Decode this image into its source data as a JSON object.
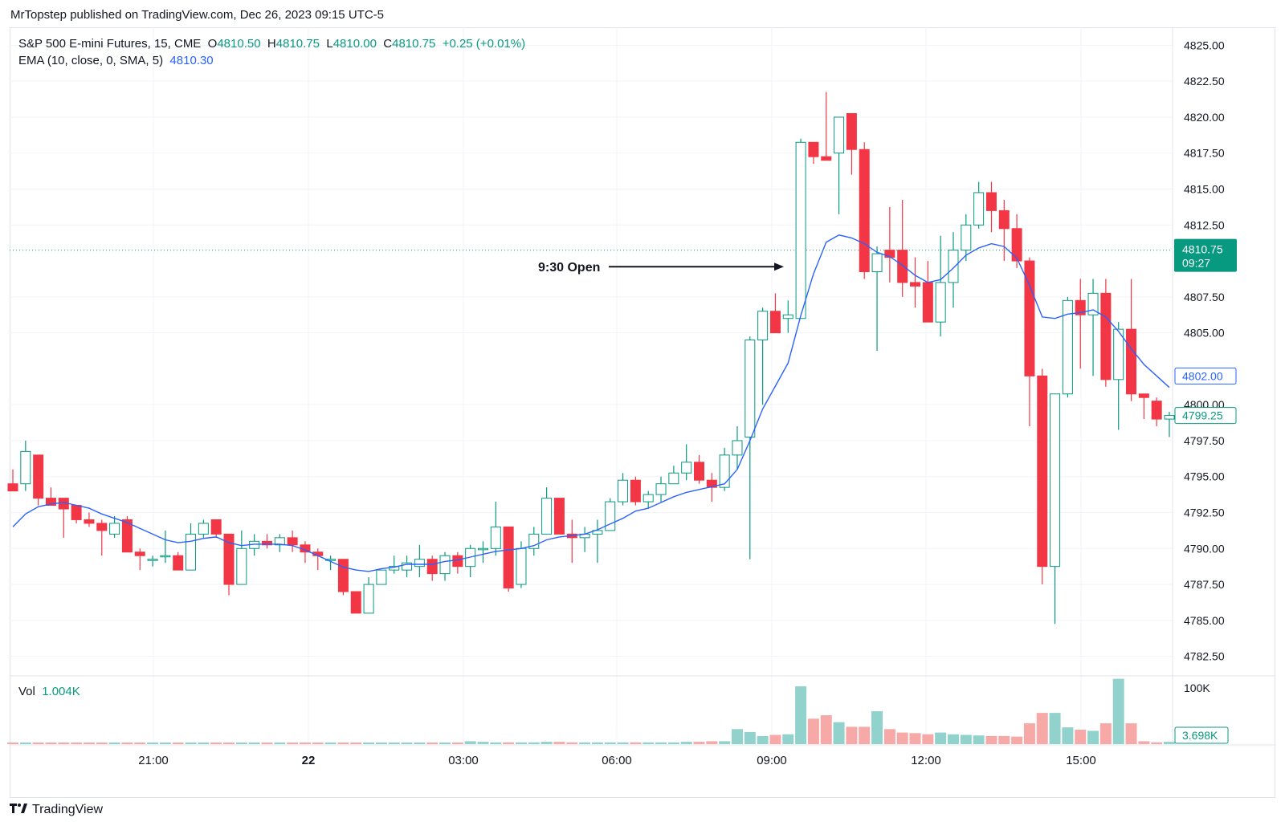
{
  "header": {
    "publisher_line": "MrTopstep published on TradingView.com, Dec 26, 2023 09:15 UTC-5"
  },
  "legend": {
    "symbol": "S&P 500 E-mini Futures, 15, CME",
    "o_label": "O",
    "o_value": "4810.50",
    "h_label": "H",
    "h_value": "4810.75",
    "l_label": "L",
    "l_value": "4810.00",
    "c_label": "C",
    "c_value": "4810.75",
    "change": "+0.25 (+0.01%)",
    "ema_label": "EMA (10, close, 0, SMA, 5)",
    "ema_value": "4810.30",
    "vol_label": "Vol",
    "vol_value": "1.004K"
  },
  "footer": {
    "logo_text": "TradingView"
  },
  "colors": {
    "up": "#089981",
    "down": "#f23645",
    "ema": "#2962ff",
    "vol_up": "#92d2cc",
    "vol_down": "#f7a9a7",
    "grid": "#f0f3fa"
  },
  "chart_data": {
    "type": "candlestick",
    "symbol": "S&P 500 E-mini Futures",
    "interval": "15",
    "ylim": [
      4781.25,
      4826.25
    ],
    "y_ticks": [
      "4825.00",
      "4822.50",
      "4820.00",
      "4817.50",
      "4815.00",
      "4812.50",
      "4807.50",
      "4805.00",
      "4800.00",
      "4797.50",
      "4795.00",
      "4792.50",
      "4790.00",
      "4787.50",
      "4785.00",
      "4782.50"
    ],
    "x_ticks": [
      "21:00",
      "22",
      "03:00",
      "06:00",
      "09:00",
      "12:00",
      "15:00"
    ],
    "price_badges": [
      {
        "value": "4810.75",
        "sub": "09:27",
        "color": "#089981",
        "filled": true
      },
      {
        "value": "4802.00",
        "color": "#2962ff",
        "filled": false
      },
      {
        "value": "4799.25",
        "color": "#089981",
        "filled": false
      }
    ],
    "annotation": "9:30 Open",
    "vol_axis_label": "100K",
    "vol_badge": "3.698K",
    "candles": [
      [
        4794.5,
        4795.5,
        4794.0,
        4794.0
      ],
      [
        4794.5,
        4797.5,
        4794.0,
        4796.75
      ],
      [
        4796.5,
        4796.5,
        4793.0,
        4793.5
      ],
      [
        4793.5,
        4794.25,
        4793.0,
        4793.0
      ],
      [
        4793.5,
        4793.5,
        4790.75,
        4792.75
      ],
      [
        4793.0,
        4793.0,
        4791.75,
        4792.0
      ],
      [
        4792.0,
        4792.5,
        4791.5,
        4791.75
      ],
      [
        4791.75,
        4792.0,
        4789.5,
        4791.25
      ],
      [
        4791.0,
        4792.25,
        4790.75,
        4791.75
      ],
      [
        4792.0,
        4792.25,
        4789.75,
        4789.75
      ],
      [
        4789.75,
        4790.0,
        4788.5,
        4789.5
      ],
      [
        4789.25,
        4789.5,
        4788.75,
        4789.25
      ],
      [
        4789.5,
        4791.25,
        4789.0,
        4789.5
      ],
      [
        4789.5,
        4789.75,
        4788.5,
        4788.5
      ],
      [
        4788.5,
        4791.75,
        4788.5,
        4791.0
      ],
      [
        4791.0,
        4792.0,
        4790.75,
        4791.75
      ],
      [
        4792.0,
        4792.0,
        4790.75,
        4791.0
      ],
      [
        4791.0,
        4791.0,
        4786.75,
        4787.5
      ],
      [
        4787.5,
        4791.25,
        4787.5,
        4790.0
      ],
      [
        4790.0,
        4791.0,
        4789.5,
        4790.5
      ],
      [
        4790.5,
        4791.0,
        4790.0,
        4790.25
      ],
      [
        4790.25,
        4791.0,
        4789.75,
        4790.75
      ],
      [
        4790.75,
        4791.25,
        4789.75,
        4790.25
      ],
      [
        4790.25,
        4790.5,
        4789.0,
        4789.75
      ],
      [
        4789.75,
        4790.0,
        4788.5,
        4789.5
      ],
      [
        4789.25,
        4789.5,
        4788.5,
        4789.25
      ],
      [
        4789.25,
        4789.25,
        4786.75,
        4787.0
      ],
      [
        4787.0,
        4787.0,
        4785.5,
        4785.5
      ],
      [
        4785.5,
        4788.0,
        4785.5,
        4787.5
      ],
      [
        4787.5,
        4788.5,
        4787.5,
        4788.5
      ],
      [
        4788.5,
        4789.5,
        4788.25,
        4788.75
      ],
      [
        4788.5,
        4789.5,
        4788.0,
        4789.0
      ],
      [
        4788.75,
        4790.25,
        4788.0,
        4789.25
      ],
      [
        4789.25,
        4789.5,
        4787.75,
        4788.25
      ],
      [
        4788.25,
        4789.75,
        4787.75,
        4789.5
      ],
      [
        4789.5,
        4789.75,
        4788.25,
        4788.75
      ],
      [
        4788.75,
        4790.25,
        4788.0,
        4790.0
      ],
      [
        4790.0,
        4790.5,
        4789.0,
        4790.0
      ],
      [
        4790.0,
        4793.25,
        4789.5,
        4791.5
      ],
      [
        4791.5,
        4791.5,
        4787.0,
        4787.25
      ],
      [
        4787.5,
        4790.5,
        4787.25,
        4790.0
      ],
      [
        4790.0,
        4791.5,
        4789.5,
        4791.0
      ],
      [
        4791.0,
        4794.25,
        4791.0,
        4793.5
      ],
      [
        4793.5,
        4793.5,
        4791.0,
        4791.0
      ],
      [
        4791.0,
        4792.0,
        4789.0,
        4790.75
      ],
      [
        4790.75,
        4791.5,
        4789.75,
        4791.0
      ],
      [
        4791.0,
        4792.0,
        4789.0,
        4791.25
      ],
      [
        4791.25,
        4793.5,
        4791.25,
        4793.25
      ],
      [
        4793.25,
        4795.25,
        4793.0,
        4794.75
      ],
      [
        4794.75,
        4795.0,
        4793.0,
        4793.25
      ],
      [
        4793.25,
        4794.0,
        4792.75,
        4793.75
      ],
      [
        4793.75,
        4795.0,
        4793.25,
        4794.5
      ],
      [
        4794.5,
        4795.75,
        4794.5,
        4795.25
      ],
      [
        4795.25,
        4797.25,
        4794.75,
        4796.0
      ],
      [
        4796.0,
        4796.5,
        4794.5,
        4794.75
      ],
      [
        4794.75,
        4795.25,
        4793.25,
        4794.25
      ],
      [
        4794.25,
        4797.0,
        4794.0,
        4796.5
      ],
      [
        4796.5,
        4798.5,
        4795.5,
        4797.5
      ],
      [
        4797.75,
        4804.75,
        4789.25,
        4804.5
      ],
      [
        4804.5,
        4806.75,
        4800.0,
        4806.5
      ],
      [
        4806.5,
        4807.75,
        4805.0,
        4805.0
      ],
      [
        4806.0,
        4807.25,
        4805.0,
        4806.25
      ],
      [
        4806.0,
        4818.5,
        4806.25,
        4818.25
      ],
      [
        4818.25,
        4818.25,
        4816.75,
        4817.25
      ],
      [
        4817.25,
        4821.75,
        4817.0,
        4817.0
      ],
      [
        4817.5,
        4820.0,
        4813.25,
        4820.0
      ],
      [
        4820.25,
        4820.25,
        4816.0,
        4817.75
      ],
      [
        4817.75,
        4818.25,
        4808.75,
        4809.25
      ],
      [
        4809.25,
        4811.0,
        4803.75,
        4810.5
      ],
      [
        4810.75,
        4813.75,
        4808.5,
        4810.25
      ],
      [
        4810.75,
        4814.25,
        4807.5,
        4808.5
      ],
      [
        4808.5,
        4810.25,
        4806.75,
        4808.25
      ],
      [
        4808.5,
        4810.0,
        4805.75,
        4805.75
      ],
      [
        4805.75,
        4811.75,
        4804.75,
        4808.5
      ],
      [
        4808.5,
        4812.0,
        4806.75,
        4810.75
      ],
      [
        4810.75,
        4813.25,
        4810.0,
        4812.5
      ],
      [
        4812.5,
        4815.5,
        4812.25,
        4814.75
      ],
      [
        4814.75,
        4815.5,
        4812.0,
        4813.5
      ],
      [
        4813.5,
        4814.25,
        4810.0,
        4812.25
      ],
      [
        4812.25,
        4813.25,
        4809.5,
        4810.0
      ],
      [
        4810.0,
        4810.25,
        4798.5,
        4802.0
      ],
      [
        4802.0,
        4802.5,
        4787.5,
        4788.75
      ],
      [
        4788.75,
        4800.75,
        4784.75,
        4800.75
      ],
      [
        4800.75,
        4807.5,
        4800.5,
        4807.25
      ],
      [
        4807.25,
        4808.75,
        4802.5,
        4806.25
      ],
      [
        4806.25,
        4808.75,
        4802.0,
        4807.75
      ],
      [
        4807.75,
        4808.75,
        4801.25,
        4801.75
      ],
      [
        4801.75,
        4805.75,
        4798.25,
        4805.25
      ],
      [
        4805.25,
        4808.75,
        4800.25,
        4800.75
      ],
      [
        4800.75,
        4800.75,
        4799.0,
        4800.5
      ],
      [
        4800.25,
        4800.5,
        4798.5,
        4799.0
      ],
      [
        4799.0,
        4799.5,
        4797.75,
        4799.25
      ]
    ],
    "ema": [
      4791.5,
      4792.4,
      4792.9,
      4793.1,
      4793.2,
      4793.0,
      4792.8,
      4792.4,
      4792.1,
      4791.8,
      4791.4,
      4791.0,
      4790.6,
      4790.4,
      4790.5,
      4790.7,
      4790.8,
      4790.4,
      4790.2,
      4790.3,
      4790.3,
      4790.3,
      4790.2,
      4789.9,
      4789.5,
      4789.1,
      4788.7,
      4788.5,
      4788.4,
      4788.6,
      4788.7,
      4788.9,
      4788.9,
      4788.9,
      4789.1,
      4789.2,
      4789.4,
      4789.6,
      4789.8,
      4789.9,
      4790.0,
      4790.2,
      4790.6,
      4790.8,
      4790.9,
      4791.0,
      4791.3,
      4791.7,
      4792.1,
      4792.6,
      4792.8,
      4793.2,
      4793.6,
      4793.9,
      4794.1,
      4794.3,
      4794.5,
      4795.5,
      4797.5,
      4799.7,
      4801.3,
      4802.9,
      4806.2,
      4809.1,
      4811.3,
      4811.8,
      4811.6,
      4811.2,
      4810.6,
      4810.3,
      4809.7,
      4809.0,
      4808.5,
      4808.7,
      4809.5,
      4810.4,
      4810.9,
      4811.2,
      4811.0,
      4810.2,
      4808.3,
      4806.1,
      4806.0,
      4806.3,
      4806.4,
      4806.6,
      4806.1,
      4805.1,
      4803.9,
      4802.8,
      4802.0,
      4801.2
    ],
    "volume": [
      0.02,
      0.02,
      0.02,
      0.02,
      0.02,
      0.02,
      0.02,
      0.02,
      0.02,
      0.02,
      0.02,
      0.02,
      0.02,
      0.02,
      0.02,
      0.02,
      0.02,
      0.02,
      0.02,
      0.02,
      0.02,
      0.02,
      0.02,
      0.02,
      0.02,
      0.02,
      0.02,
      0.02,
      0.02,
      0.02,
      0.02,
      0.02,
      0.02,
      0.02,
      0.02,
      0.02,
      0.05,
      0.04,
      0.03,
      0.03,
      0.03,
      0.03,
      0.04,
      0.04,
      0.03,
      0.03,
      0.03,
      0.03,
      0.03,
      0.03,
      0.03,
      0.03,
      0.03,
      0.04,
      0.04,
      0.05,
      0.05,
      0.26,
      0.21,
      0.14,
      0.16,
      0.17,
      1.0,
      0.44,
      0.5,
      0.38,
      0.3,
      0.3,
      0.57,
      0.26,
      0.2,
      0.19,
      0.17,
      0.2,
      0.17,
      0.16,
      0.15,
      0.14,
      0.14,
      0.13,
      0.36,
      0.54,
      0.54,
      0.29,
      0.25,
      0.23,
      0.36,
      1.13,
      0.36,
      0.05,
      0.03,
      0.04
    ]
  }
}
